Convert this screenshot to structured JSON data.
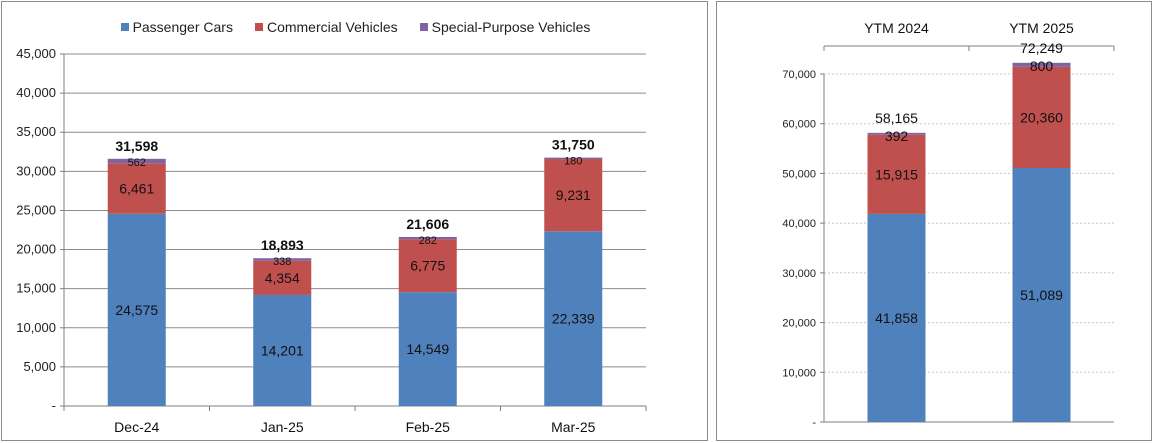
{
  "colors": {
    "passenger": "#4f81bd",
    "commercial": "#c0504d",
    "special": "#8064a2"
  },
  "chart_data": [
    {
      "type": "bar",
      "stacked": true,
      "categories": [
        "Dec-24",
        "Jan-25",
        "Feb-25",
        "Mar-25"
      ],
      "series": [
        {
          "name": "Passenger Cars",
          "values": [
            24575,
            14201,
            14549,
            22339
          ]
        },
        {
          "name": "Commercial Vehicles",
          "values": [
            6461,
            4354,
            6775,
            9231
          ]
        },
        {
          "name": "Special-Purpose Vehicles",
          "values": [
            562,
            338,
            282,
            180
          ]
        }
      ],
      "value_labels": [
        [
          "24,575",
          "14,201",
          "14,549",
          "22,339"
        ],
        [
          "6,461",
          "4,354",
          "6,775",
          "9,231"
        ],
        [
          "562",
          "338",
          "282",
          "180"
        ]
      ],
      "totals": [
        "31,598",
        "18,893",
        "21,606",
        "31,750"
      ],
      "ylim": [
        0,
        45000
      ],
      "y_ticks": [
        "-",
        "5,000",
        "10,000",
        "15,000",
        "20,000",
        "25,000",
        "30,000",
        "35,000",
        "40,000",
        "45,000"
      ],
      "legend_position": "top",
      "grid": true
    },
    {
      "type": "bar",
      "stacked": true,
      "categories": [
        "YTM 2024",
        "YTM 2025"
      ],
      "series": [
        {
          "name": "Passenger Cars",
          "values": [
            41858,
            51089
          ]
        },
        {
          "name": "Commercial Vehicles",
          "values": [
            15915,
            20360
          ]
        },
        {
          "name": "Special-Purpose Vehicles",
          "values": [
            392,
            800
          ]
        }
      ],
      "value_labels": [
        [
          "41,858",
          "51,089"
        ],
        [
          "15,915",
          "20,360"
        ],
        [
          "392",
          "800"
        ]
      ],
      "totals": [
        "58,165",
        "72,249"
      ],
      "ylim": [
        0,
        70000
      ],
      "y_ticks": [
        "-",
        "10,000",
        "20,000",
        "30,000",
        "40,000",
        "50,000",
        "60,000",
        "70,000"
      ],
      "x_axis_position": "top",
      "grid": true
    }
  ]
}
